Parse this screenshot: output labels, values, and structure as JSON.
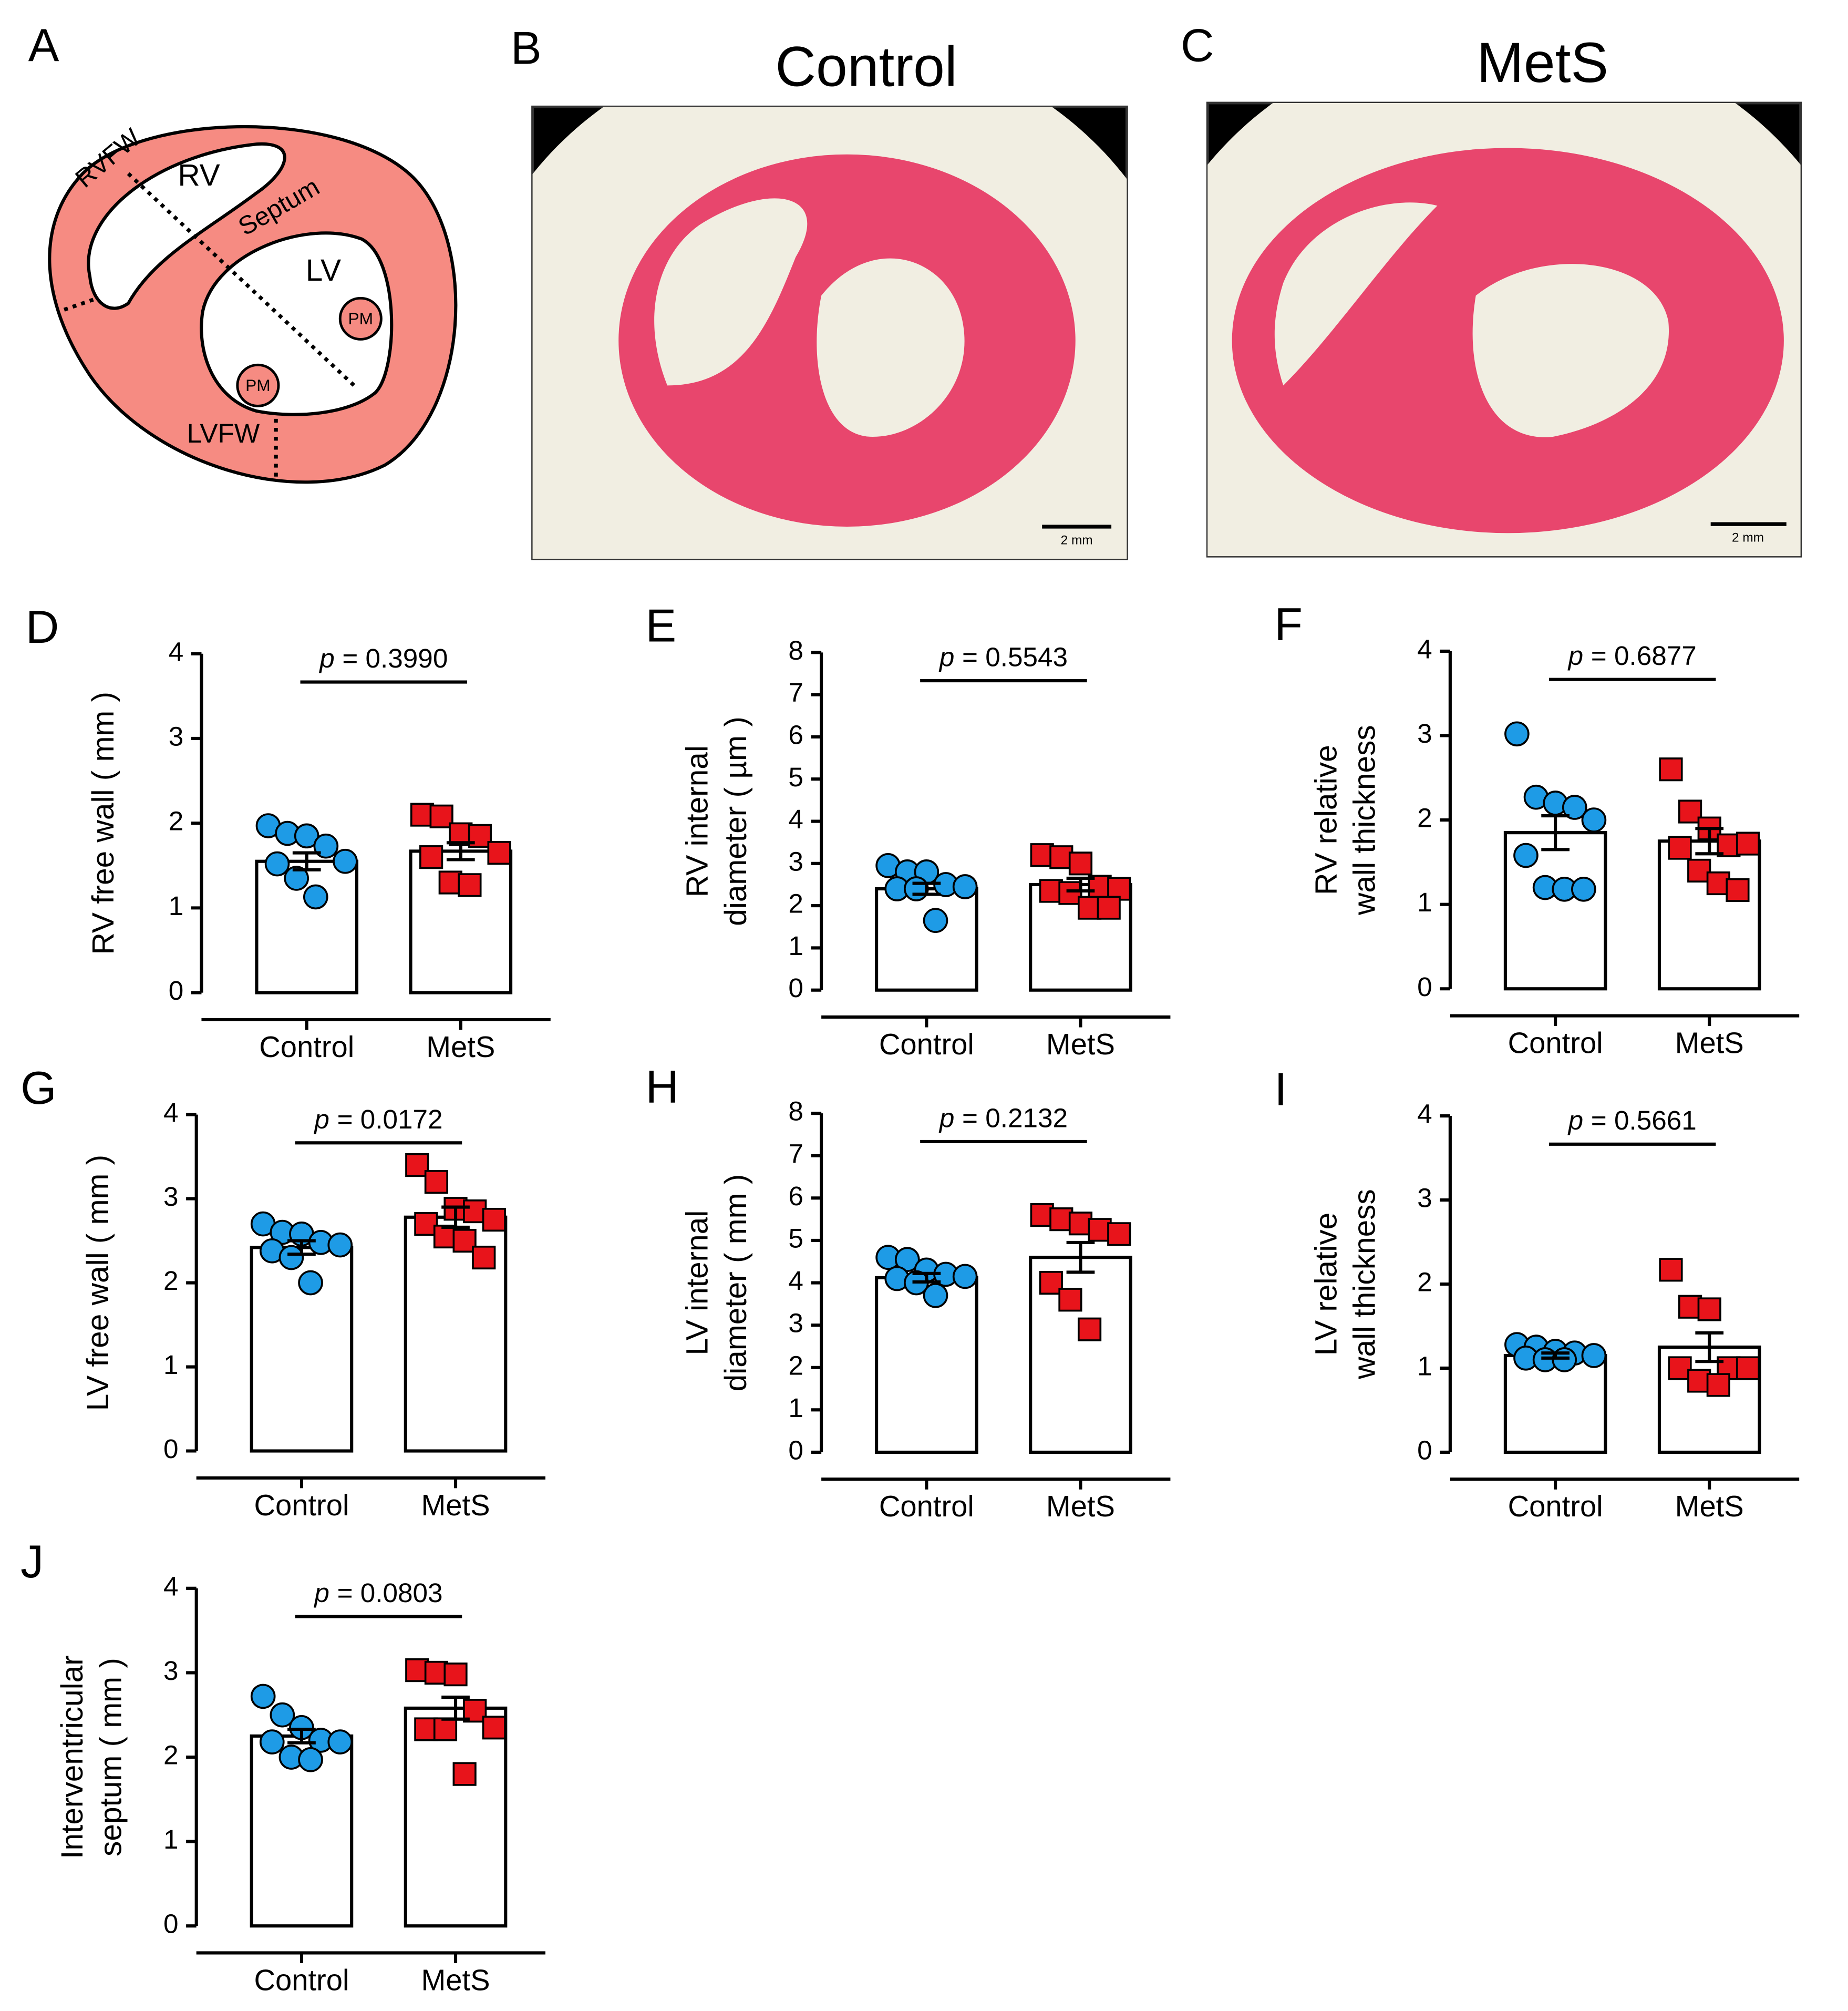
{
  "panel_a": {
    "label": "A",
    "labels": [
      "RVFW",
      "RV",
      "Septum",
      "LV",
      "PM",
      "PM",
      "LVFW"
    ]
  },
  "panel_b": {
    "label": "B",
    "title": "Control",
    "scale_bar": "2 mm"
  },
  "panel_c": {
    "label": "C",
    "title": "MetS",
    "scale_bar": "2 mm"
  },
  "chart_data": [
    {
      "type": "bar",
      "panel": "D",
      "ylabel": [
        "RV free wall ( mm )"
      ],
      "p_symbol": "p",
      "p_value": "= 0.3990",
      "categories": [
        "Control",
        "MetS"
      ],
      "values": [
        1.55,
        1.67
      ],
      "errors": [
        0.1,
        0.1
      ],
      "points": [
        [
          1.97,
          1.88,
          1.85,
          1.73,
          1.55,
          1.52,
          1.35,
          1.13
        ],
        [
          2.1,
          2.08,
          1.87,
          1.85,
          1.65,
          1.6,
          1.3,
          1.27
        ]
      ],
      "colors": [
        "#1e9be6",
        "#e8141b"
      ],
      "markers": [
        "circle",
        "square"
      ],
      "ylim": [
        0,
        4
      ],
      "yticks": [
        0,
        1,
        2,
        3,
        4
      ]
    },
    {
      "type": "bar",
      "panel": "E",
      "ylabel": [
        "RV internal",
        "diameter ( µm )"
      ],
      "p_symbol": "p",
      "p_value": "= 0.5543",
      "categories": [
        "Control",
        "MetS"
      ],
      "values": [
        2.4,
        2.5
      ],
      "errors": [
        0.13,
        0.15
      ],
      "points": [
        [
          2.95,
          2.8,
          2.8,
          2.5,
          2.45,
          2.4,
          2.4,
          1.65
        ],
        [
          3.2,
          3.15,
          3.0,
          2.45,
          2.4,
          2.35,
          2.3,
          1.95,
          1.95
        ]
      ],
      "colors": [
        "#1e9be6",
        "#e8141b"
      ],
      "markers": [
        "circle",
        "square"
      ],
      "ylim": [
        0,
        8
      ],
      "yticks": [
        0,
        1,
        2,
        3,
        4,
        5,
        6,
        7,
        8
      ]
    },
    {
      "type": "bar",
      "panel": "F",
      "ylabel": [
        "RV relative",
        "wall thickness"
      ],
      "p_symbol": "p",
      "p_value": "= 0.6877",
      "categories": [
        "Control",
        "MetS"
      ],
      "values": [
        1.85,
        1.75
      ],
      "errors": [
        0.2,
        0.15
      ],
      "points": [
        [
          3.02,
          2.27,
          2.2,
          2.15,
          2.0,
          1.58,
          1.2,
          1.18,
          1.18
        ],
        [
          2.6,
          2.1,
          1.9,
          1.7,
          1.72,
          1.67,
          1.4,
          1.25,
          1.17
        ]
      ],
      "colors": [
        "#1e9be6",
        "#e8141b"
      ],
      "markers": [
        "circle",
        "square"
      ],
      "ylim": [
        0,
        4
      ],
      "yticks": [
        0,
        1,
        2,
        3,
        4
      ]
    },
    {
      "type": "bar",
      "panel": "G",
      "ylabel": [
        "LV free wall ( mm )"
      ],
      "p_symbol": "p",
      "p_value": "= 0.0172",
      "categories": [
        "Control",
        "MetS"
      ],
      "values": [
        2.42,
        2.78
      ],
      "errors": [
        0.08,
        0.12
      ],
      "points": [
        [
          2.7,
          2.6,
          2.58,
          2.48,
          2.45,
          2.38,
          2.3,
          2.0
        ],
        [
          3.4,
          3.2,
          2.88,
          2.85,
          2.75,
          2.7,
          2.55,
          2.5,
          2.3
        ]
      ],
      "colors": [
        "#1e9be6",
        "#e8141b"
      ],
      "markers": [
        "circle",
        "square"
      ],
      "ylim": [
        0,
        4
      ],
      "yticks": [
        0,
        1,
        2,
        3,
        4
      ]
    },
    {
      "type": "bar",
      "panel": "H",
      "ylabel": [
        "LV internal",
        "diameter ( mm )"
      ],
      "p_symbol": "p",
      "p_value": "= 0.2132",
      "categories": [
        "Control",
        "MetS"
      ],
      "values": [
        4.12,
        4.6
      ],
      "errors": [
        0.1,
        0.35
      ],
      "points": [
        [
          4.6,
          4.55,
          4.3,
          4.2,
          4.15,
          4.1,
          4.0,
          3.7
        ],
        [
          5.6,
          5.5,
          5.4,
          5.25,
          5.15,
          4.0,
          3.6,
          2.9
        ]
      ],
      "colors": [
        "#1e9be6",
        "#e8141b"
      ],
      "markers": [
        "circle",
        "square"
      ],
      "ylim": [
        0,
        8
      ],
      "yticks": [
        0,
        1,
        2,
        3,
        4,
        5,
        6,
        7,
        8
      ]
    },
    {
      "type": "bar",
      "panel": "I",
      "ylabel": [
        "LV relative",
        "wall thickness"
      ],
      "p_symbol": "p",
      "p_value": "= 0.5661",
      "categories": [
        "Control",
        "MetS"
      ],
      "values": [
        1.15,
        1.25
      ],
      "errors": [
        0.03,
        0.17
      ],
      "points": [
        [
          1.28,
          1.25,
          1.2,
          1.18,
          1.15,
          1.12,
          1.1,
          1.1
        ],
        [
          2.17,
          1.73,
          1.7,
          1.0,
          1.0,
          1.0,
          0.85,
          0.8
        ]
      ],
      "colors": [
        "#1e9be6",
        "#e8141b"
      ],
      "markers": [
        "circle",
        "square"
      ],
      "ylim": [
        0,
        4
      ],
      "yticks": [
        0,
        1,
        2,
        3,
        4
      ]
    },
    {
      "type": "bar",
      "panel": "J",
      "ylabel": [
        "Interventricular",
        "septum ( mm )"
      ],
      "p_symbol": "p",
      "p_value": "= 0.0803",
      "categories": [
        "Control",
        "MetS"
      ],
      "values": [
        2.25,
        2.58
      ],
      "errors": [
        0.08,
        0.13
      ],
      "points": [
        [
          2.72,
          2.5,
          2.35,
          2.2,
          2.18,
          2.18,
          2.0,
          1.97
        ],
        [
          3.03,
          3.0,
          2.98,
          2.55,
          2.35,
          2.33,
          2.33,
          1.8
        ]
      ],
      "colors": [
        "#1e9be6",
        "#e8141b"
      ],
      "markers": [
        "circle",
        "square"
      ],
      "ylim": [
        0,
        4
      ],
      "yticks": [
        0,
        1,
        2,
        3,
        4
      ]
    }
  ]
}
